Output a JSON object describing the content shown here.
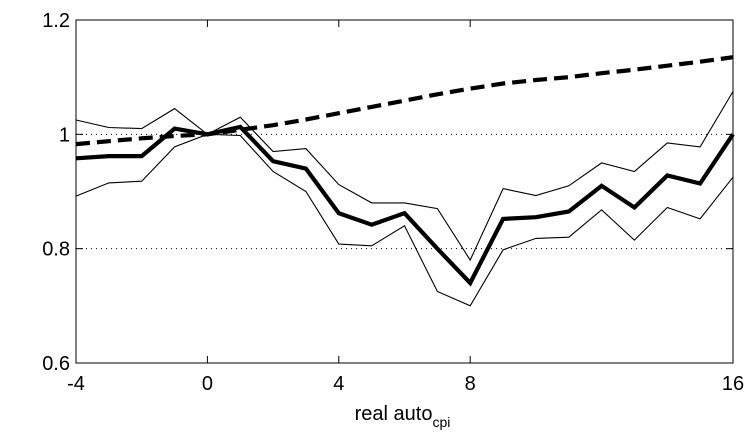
{
  "chart_data": {
    "type": "line",
    "title": "",
    "xlabel": "real auto",
    "xlabel_subscript": "cpi",
    "ylabel": "",
    "xlim": [
      -4,
      16
    ],
    "ylim": [
      0.6,
      1.2
    ],
    "xticks": [
      -4,
      0,
      4,
      8,
      16
    ],
    "xtick_labels": [
      "-4",
      "0",
      "4",
      "8",
      "16"
    ],
    "yticks": [
      0.6,
      0.8,
      1,
      1.2
    ],
    "ytick_labels": [
      "0.6",
      "0.8",
      "1",
      "1.2"
    ],
    "grid": "dotted horizontal at 0.8 and 1",
    "x": [
      -4,
      -3,
      -2,
      -1,
      0,
      1,
      2,
      3,
      4,
      5,
      6,
      7,
      8,
      9,
      10,
      11,
      12,
      13,
      14,
      15,
      16
    ],
    "series": [
      {
        "style": "thick-solid",
        "values": [
          0.958,
          0.962,
          0.962,
          1.01,
          1.0,
          1.013,
          0.953,
          0.94,
          0.862,
          0.842,
          0.862,
          0.8,
          0.74,
          0.852,
          0.855,
          0.865,
          0.91,
          0.872,
          0.928,
          0.914,
          1.0
        ]
      },
      {
        "style": "thin-solid-upper",
        "values": [
          1.025,
          1.012,
          1.01,
          1.045,
          1.0,
          1.03,
          0.97,
          0.975,
          0.912,
          0.88,
          0.88,
          0.87,
          0.78,
          0.905,
          0.893,
          0.91,
          0.95,
          0.935,
          0.985,
          0.978,
          1.075
        ]
      },
      {
        "style": "thin-solid-lower",
        "values": [
          0.892,
          0.915,
          0.918,
          0.978,
          1.0,
          0.998,
          0.935,
          0.9,
          0.808,
          0.805,
          0.84,
          0.725,
          0.7,
          0.798,
          0.818,
          0.82,
          0.868,
          0.815,
          0.872,
          0.852,
          0.925
        ]
      },
      {
        "style": "thick-dashed",
        "values": [
          0.983,
          0.988,
          0.993,
          0.997,
          1.0,
          1.008,
          1.016,
          1.026,
          1.037,
          1.048,
          1.059,
          1.07,
          1.08,
          1.089,
          1.095,
          1.1,
          1.107,
          1.113,
          1.12,
          1.127,
          1.135
        ]
      }
    ]
  }
}
